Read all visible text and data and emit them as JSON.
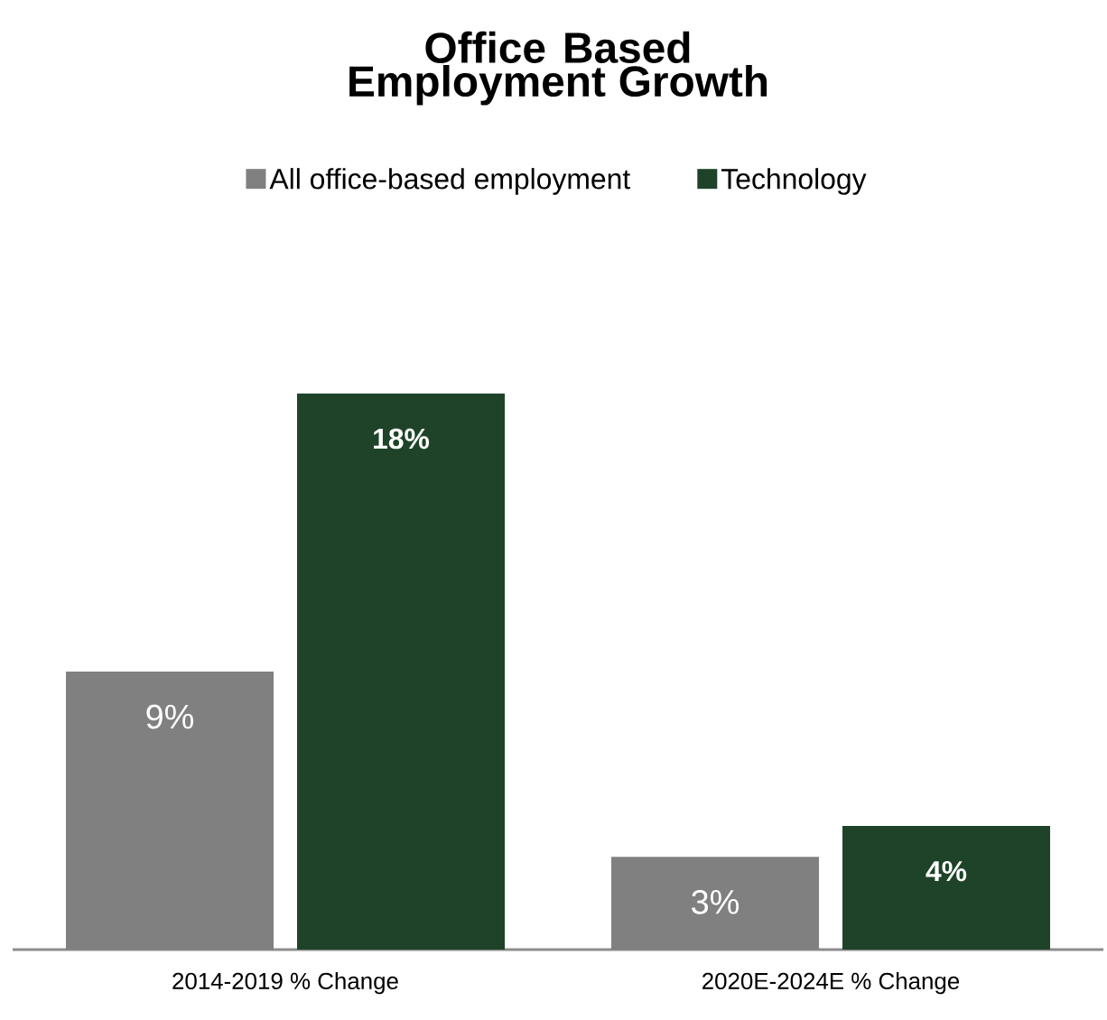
{
  "chart_data": {
    "type": "bar",
    "title": "Office Based Employment Growth",
    "categories": [
      "2014-2019 % Change",
      "2020E-2024E % Change"
    ],
    "series": [
      {
        "name": "All office-based employment",
        "color": "#808080",
        "values": [
          9,
          3
        ],
        "value_labels": [
          "9%",
          "3%"
        ]
      },
      {
        "name": "Technology",
        "color": "#1e4328",
        "values": [
          18,
          4
        ],
        "value_labels": [
          "18%",
          "4%"
        ]
      }
    ],
    "legend": "top"
  }
}
